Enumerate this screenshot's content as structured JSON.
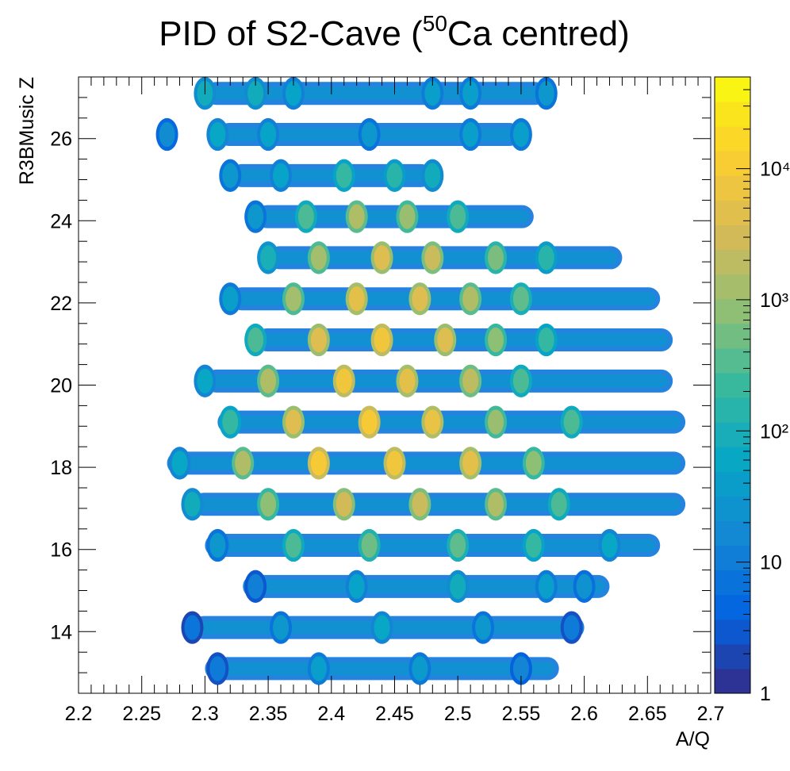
{
  "chart_data": {
    "type": "heatmap",
    "title_main": "PID of S2-Cave (",
    "title_superscript": "50",
    "title_suffix": "Ca centred)",
    "xlabel": "A/Q",
    "ylabel": "R3BMusic Z",
    "xlim": [
      2.2,
      2.7
    ],
    "ylim": [
      12.5,
      27.5
    ],
    "x_ticks": [
      2.2,
      2.25,
      2.3,
      2.35,
      2.4,
      2.45,
      2.5,
      2.55,
      2.6,
      2.65,
      2.7
    ],
    "x_tick_labels": [
      "2.2",
      "2.25",
      "2.3",
      "2.35",
      "2.4",
      "2.45",
      "2.5",
      "2.55",
      "2.6",
      "2.65",
      "2.7"
    ],
    "y_ticks": [
      14,
      16,
      18,
      20,
      22,
      24,
      26
    ],
    "y_tick_labels": [
      "14",
      "16",
      "18",
      "20",
      "22",
      "24",
      "26"
    ],
    "colorbar": {
      "scale": "log",
      "range": [
        1,
        50000
      ],
      "tick_labels": [
        {
          "value": 1,
          "text": "1"
        },
        {
          "value": 10,
          "text": "10"
        },
        {
          "value": 100,
          "text": "10²"
        },
        {
          "value": 1000,
          "text": "10³"
        },
        {
          "value": 10000,
          "text": "10⁴"
        }
      ],
      "colors": [
        "#352a87",
        "#0363e1",
        "#1485d4",
        "#06a7c6",
        "#38b99e",
        "#92bf73",
        "#d9ba56",
        "#fcce2e",
        "#f9fb0e"
      ]
    },
    "grid": false,
    "legend": "none",
    "rows": [
      {
        "z": 13.1,
        "a_q_start": 2.3,
        "a_q_end": 2.58,
        "blobs": [
          [
            2.31,
            10
          ],
          [
            2.39,
            40
          ],
          [
            2.47,
            35
          ],
          [
            2.55,
            15
          ]
        ]
      },
      {
        "z": 14.1,
        "a_q_start": 2.29,
        "a_q_end": 2.6,
        "blobs": [
          [
            2.29,
            8
          ],
          [
            2.36,
            30
          ],
          [
            2.44,
            60
          ],
          [
            2.52,
            30
          ],
          [
            2.59,
            10
          ]
        ]
      },
      {
        "z": 15.1,
        "a_q_start": 2.33,
        "a_q_end": 2.62,
        "blobs": [
          [
            2.34,
            12
          ],
          [
            2.42,
            50
          ],
          [
            2.5,
            80
          ],
          [
            2.57,
            40
          ],
          [
            2.6,
            25
          ]
        ]
      },
      {
        "z": 16.1,
        "a_q_start": 2.3,
        "a_q_end": 2.66,
        "blobs": [
          [
            2.31,
            30
          ],
          [
            2.37,
            300
          ],
          [
            2.43,
            500
          ],
          [
            2.5,
            400
          ],
          [
            2.56,
            200
          ],
          [
            2.62,
            60
          ]
        ]
      },
      {
        "z": 17.1,
        "a_q_start": 2.29,
        "a_q_end": 2.68,
        "blobs": [
          [
            2.29,
            80
          ],
          [
            2.35,
            800
          ],
          [
            2.41,
            3000
          ],
          [
            2.47,
            2500
          ],
          [
            2.53,
            1500
          ],
          [
            2.58,
            300
          ]
        ]
      },
      {
        "z": 18.1,
        "a_q_start": 2.27,
        "a_q_end": 2.68,
        "blobs": [
          [
            2.28,
            60
          ],
          [
            2.33,
            1500
          ],
          [
            2.39,
            10000
          ],
          [
            2.45,
            8000
          ],
          [
            2.51,
            5000
          ],
          [
            2.56,
            800
          ]
        ]
      },
      {
        "z": 19.1,
        "a_q_start": 2.31,
        "a_q_end": 2.68,
        "blobs": [
          [
            2.32,
            200
          ],
          [
            2.37,
            4000
          ],
          [
            2.43,
            10000
          ],
          [
            2.48,
            6000
          ],
          [
            2.53,
            1000
          ],
          [
            2.59,
            300
          ]
        ]
      },
      {
        "z": 20.1,
        "a_q_start": 2.3,
        "a_q_end": 2.67,
        "blobs": [
          [
            2.3,
            60
          ],
          [
            2.35,
            1500
          ],
          [
            2.41,
            8000
          ],
          [
            2.46,
            5000
          ],
          [
            2.51,
            2000
          ],
          [
            2.55,
            300
          ]
        ]
      },
      {
        "z": 21.1,
        "a_q_start": 2.34,
        "a_q_end": 2.67,
        "blobs": [
          [
            2.34,
            300
          ],
          [
            2.39,
            4000
          ],
          [
            2.44,
            8000
          ],
          [
            2.49,
            4000
          ],
          [
            2.53,
            800
          ],
          [
            2.57,
            200
          ]
        ]
      },
      {
        "z": 22.1,
        "a_q_start": 2.32,
        "a_q_end": 2.66,
        "blobs": [
          [
            2.32,
            40
          ],
          [
            2.37,
            1200
          ],
          [
            2.42,
            5000
          ],
          [
            2.47,
            4000
          ],
          [
            2.51,
            1500
          ],
          [
            2.55,
            400
          ]
        ]
      },
      {
        "z": 23.1,
        "a_q_start": 2.35,
        "a_q_end": 2.63,
        "blobs": [
          [
            2.35,
            100
          ],
          [
            2.39,
            1200
          ],
          [
            2.44,
            4000
          ],
          [
            2.48,
            2500
          ],
          [
            2.53,
            600
          ],
          [
            2.57,
            150
          ]
        ]
      },
      {
        "z": 24.1,
        "a_q_start": 2.34,
        "a_q_end": 2.56,
        "blobs": [
          [
            2.34,
            30
          ],
          [
            2.38,
            300
          ],
          [
            2.42,
            1500
          ],
          [
            2.46,
            1000
          ],
          [
            2.5,
            300
          ]
        ]
      },
      {
        "z": 25.1,
        "a_q_start": 2.32,
        "a_q_end": 2.48,
        "blobs": [
          [
            2.32,
            30
          ],
          [
            2.36,
            50
          ],
          [
            2.41,
            200
          ],
          [
            2.45,
            150
          ],
          [
            2.48,
            80
          ]
        ]
      },
      {
        "z": 26.1,
        "a_q_start": 2.31,
        "a_q_end": 2.55,
        "blobs": [
          [
            2.27,
            20
          ],
          [
            2.31,
            60
          ],
          [
            2.35,
            50
          ],
          [
            2.43,
            30
          ],
          [
            2.51,
            40
          ],
          [
            2.55,
            40
          ]
        ]
      },
      {
        "z": 27.1,
        "a_q_start": 2.3,
        "a_q_end": 2.57,
        "blobs": [
          [
            2.3,
            80
          ],
          [
            2.34,
            80
          ],
          [
            2.37,
            50
          ],
          [
            2.48,
            40
          ],
          [
            2.51,
            40
          ],
          [
            2.57,
            30
          ]
        ]
      }
    ]
  }
}
